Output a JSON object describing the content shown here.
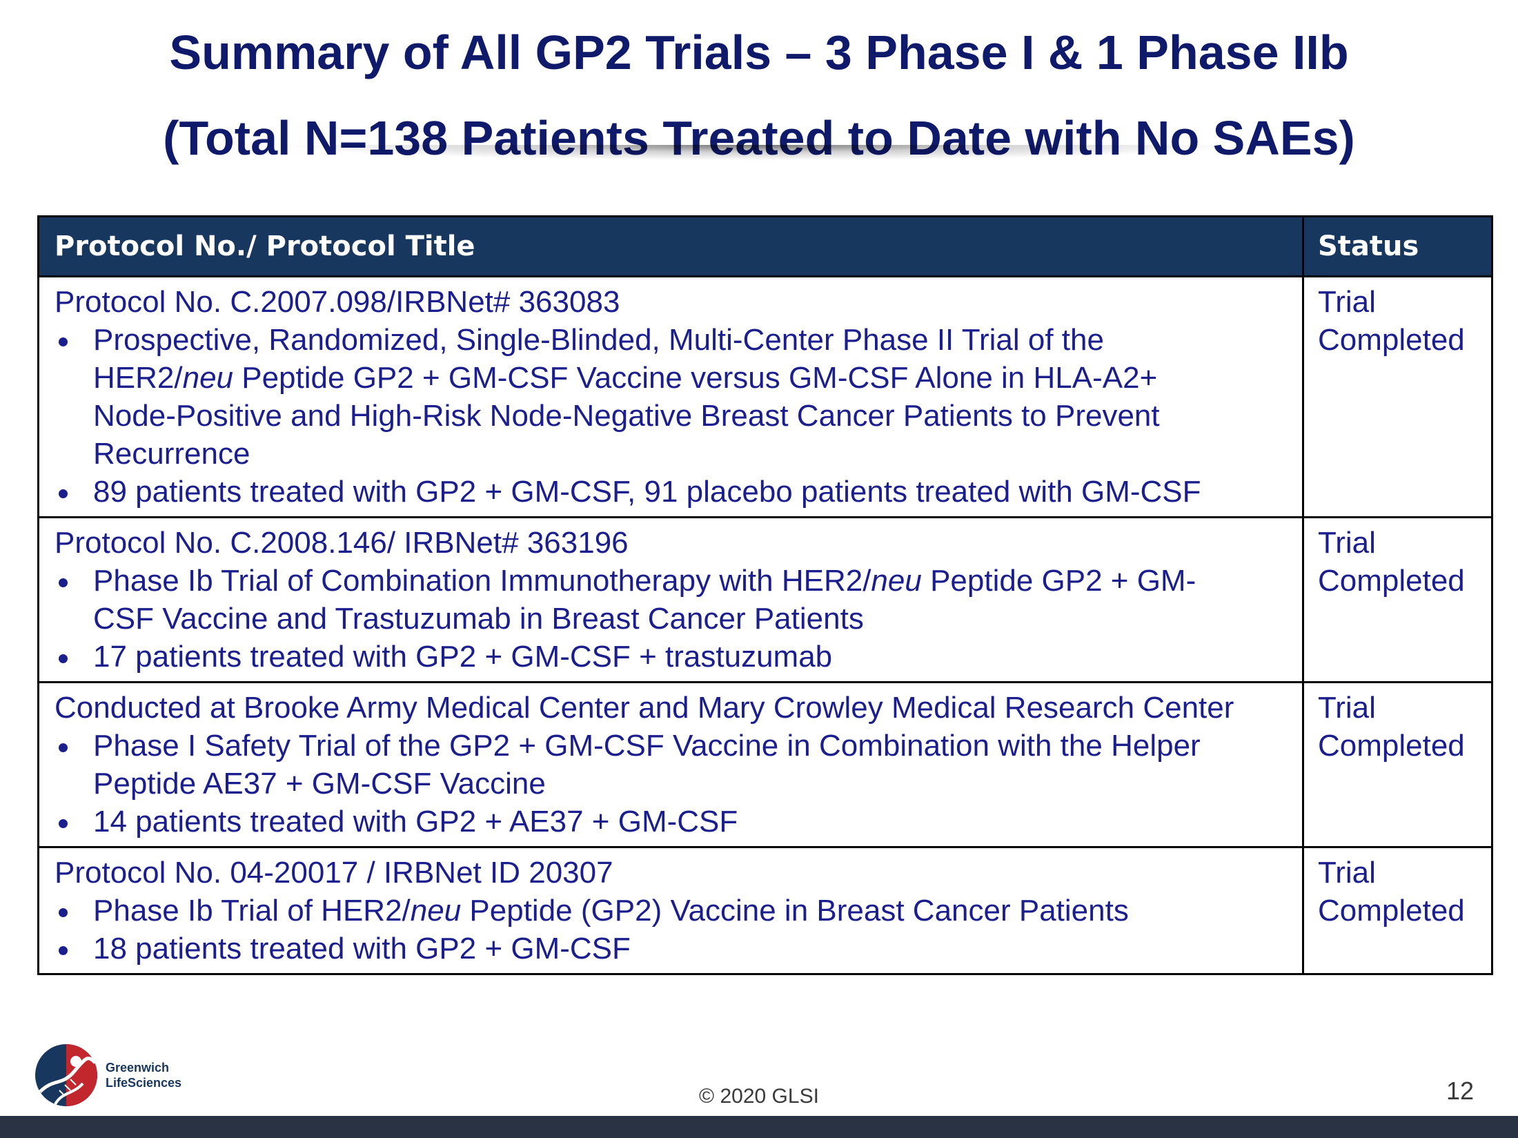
{
  "slide": {
    "title_line1": "Summary of All GP2 Trials – 3 Phase I & 1 Phase IIb",
    "title_line2": "(Total N=138 Patients Treated to Date with No SAEs)"
  },
  "table": {
    "header": {
      "col1": "Protocol No./ Protocol Title",
      "col2": "Status"
    },
    "rows": [
      {
        "heading": "Protocol No. C.2007.098/IRBNet# 363083",
        "bullets": [
          [
            "Prospective, Randomized, Single-Blinded, Multi-Center Phase II Trial of the",
            "HER2/",
            "neu",
            " Peptide GP2 + GM-CSF Vaccine versus GM-CSF Alone in HLA-A2+",
            "Node-Positive and High-Risk Node-Negative Breast Cancer Patients to Prevent",
            "Recurrence"
          ],
          "89 patients treated with GP2 + GM-CSF, 91 placebo patients treated with GM-CSF"
        ],
        "status": [
          "Trial",
          "Completed"
        ]
      },
      {
        "heading": "Protocol No. C.2008.146/ IRBNet# 363196",
        "bullets": [
          [
            "Phase Ib Trial of Combination Immunotherapy with HER2/",
            "neu",
            " Peptide GP2 + GM-",
            "CSF Vaccine and Trastuzumab in Breast Cancer Patients"
          ],
          "17 patients treated with GP2 + GM-CSF + trastuzumab"
        ],
        "status": [
          "Trial",
          "Completed"
        ]
      },
      {
        "heading": "Conducted at Brooke Army Medical Center and Mary Crowley Medical Research Center",
        "bullets": [
          [
            "Phase I Safety Trial of the GP2 + GM-CSF Vaccine in Combination with the Helper",
            "Peptide AE37 + GM-CSF Vaccine"
          ],
          "14 patients treated with GP2 + AE37 + GM-CSF"
        ],
        "status": [
          "Trial",
          "Completed"
        ]
      },
      {
        "heading": "Protocol No. 04-20017 / IRBNet ID 20307",
        "bullets": [
          [
            "Phase Ib Trial of HER2/",
            "neu",
            " Peptide (GP2) Vaccine in Breast Cancer Patients"
          ],
          "18 patients treated with GP2 + GM-CSF"
        ],
        "status": [
          "Trial",
          "Completed"
        ]
      }
    ]
  },
  "footer": {
    "logo_line1": "Greenwich",
    "logo_line2": "LifeSciences",
    "copyright": "© 2020 GLSI",
    "page_number": "12"
  },
  "colors": {
    "title": "#0f1a6b",
    "header_bg": "#17375e",
    "body_text": "#1b1f8e",
    "logo_red": "#c1272d",
    "logo_navy": "#17375e",
    "footer_bar": "#2a3344"
  }
}
